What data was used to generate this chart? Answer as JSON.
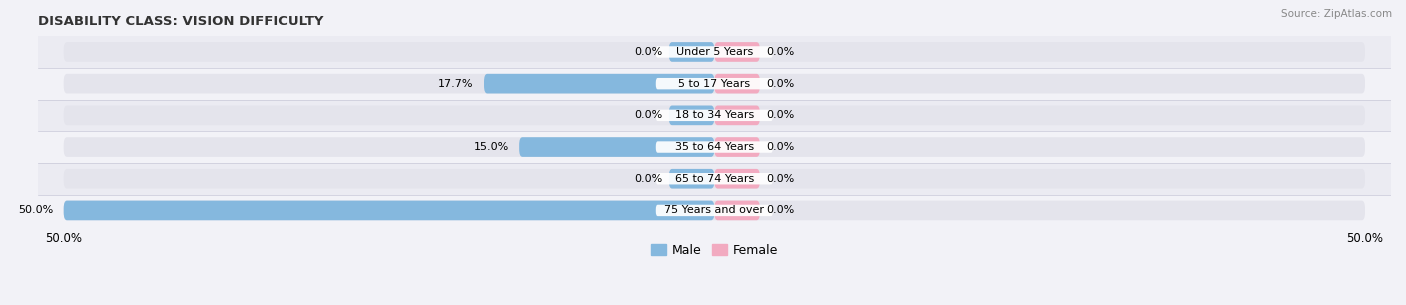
{
  "title": "DISABILITY CLASS: VISION DIFFICULTY",
  "source": "Source: ZipAtlas.com",
  "categories": [
    "Under 5 Years",
    "5 to 17 Years",
    "18 to 34 Years",
    "35 to 64 Years",
    "65 to 74 Years",
    "75 Years and over"
  ],
  "male_values": [
    0.0,
    17.7,
    0.0,
    15.0,
    0.0,
    50.0
  ],
  "female_values": [
    0.0,
    0.0,
    0.0,
    0.0,
    0.0,
    0.0
  ],
  "male_color": "#85b8de",
  "female_color": "#f2aac0",
  "bar_bg_color": "#e4e4ec",
  "bar_bg_color_alt": "#ededf3",
  "axis_max": 50.0,
  "bar_height": 0.62,
  "min_stub": 3.5,
  "title_fontsize": 9.5,
  "tick_fontsize": 8.5,
  "legend_fontsize": 9,
  "category_fontsize": 8,
  "value_fontsize": 8,
  "bg_color": "#f2f2f7",
  "row_bg_even": "#ebebf2",
  "row_bg_odd": "#f2f2f7"
}
